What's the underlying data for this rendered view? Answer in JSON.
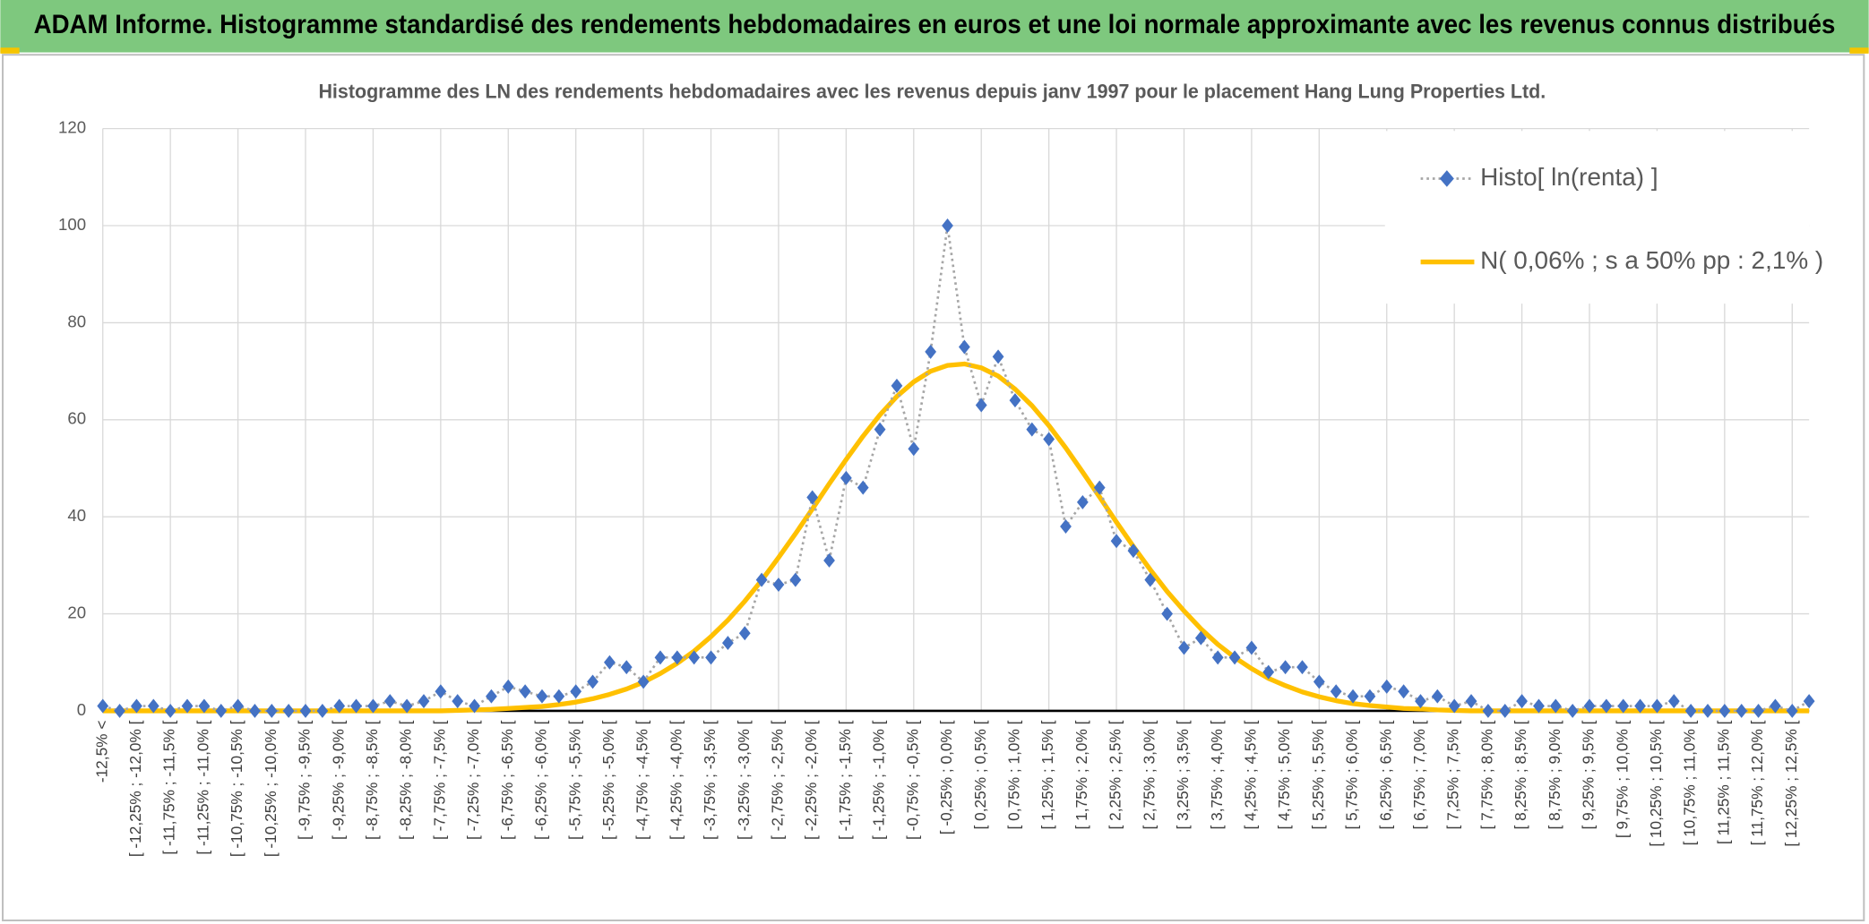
{
  "header": {
    "title": "ADAM Informe. Histogramme standardisé des rendements hebdomadaires en euros et une loi normale approximante avec les revenus connus distribués"
  },
  "chart_data": {
    "type": "line",
    "title": "Histogramme des LN des rendements hebdomadaires avec les revenus depuis janv 1997 pour le placement Hang Lung Properties Ltd.",
    "categories": [
      "-12,5% <",
      null,
      "[ -12,25% ; -12,0% [",
      null,
      "[ -11,75% ; -11,5% [",
      null,
      "[ -11,25% ; -11,0% [",
      null,
      "[ -10,75% ; -10,5% [",
      null,
      "[ -10,25% ; -10,0% [",
      null,
      "[ -9,75% ; -9,5% [",
      null,
      "[ -9,25% ; -9,0% [",
      null,
      "[ -8,75% ; -8,5% [",
      null,
      "[ -8,25% ; -8,0% [",
      null,
      "[ -7,75% ; -7,5% [",
      null,
      "[ -7,25% ; -7,0% [",
      null,
      "[ -6,75% ; -6,5% [",
      null,
      "[ -6,25% ; -6,0% [",
      null,
      "[ -5,75% ; -5,5% [",
      null,
      "[ -5,25% ; -5,0% [",
      null,
      "[ -4,75% ; -4,5% [",
      null,
      "[ -4,25% ; -4,0% [",
      null,
      "[ -3,75% ; -3,5% [",
      null,
      "[ -3,25% ; -3,0% [",
      null,
      "[ -2,75% ; -2,5% [",
      null,
      "[ -2,25% ; -2,0% [",
      null,
      "[ -1,75% ; -1,5% [",
      null,
      "[ -1,25% ; -1,0% [",
      null,
      "[ -0,75% ; -0,5% [",
      null,
      "[ -0,25% ; 0,0% [",
      null,
      "[ 0,25% ; 0,5% [",
      null,
      "[ 0,75% ; 1,0% [",
      null,
      "[ 1,25% ; 1,5% [",
      null,
      "[ 1,75% ; 2,0% [",
      null,
      "[ 2,25% ; 2,5% [",
      null,
      "[ 2,75% ; 3,0% [",
      null,
      "[ 3,25% ; 3,5% [",
      null,
      "[ 3,75% ; 4,0% [",
      null,
      "[ 4,25% ; 4,5% [",
      null,
      "[ 4,75% ; 5,0% [",
      null,
      "[ 5,25% ; 5,5% [",
      null,
      "[ 5,75% ; 6,0% [",
      null,
      "[ 6,25% ; 6,5% [",
      null,
      "[ 6,75% ; 7,0% [",
      null,
      "[ 7,25% ; 7,5% [",
      null,
      "[ 7,75% ; 8,0% [",
      null,
      "[ 8,25% ; 8,5% [",
      null,
      "[ 8,75% ; 9,0% [",
      null,
      "[ 9,25% ; 9,5% [",
      null,
      "[ 9,75% ; 10,0% [",
      null,
      "[ 10,25% ; 10,5% [",
      null,
      "[ 10,75% ; 11,0% [",
      null,
      "[ 11,25% ; 11,5% [",
      null,
      "[ 11,75% ; 12,0% [",
      null,
      "[ 12,25% ; 12,5% [",
      null
    ],
    "series": [
      {
        "name": "Histo[ ln(renta) ]",
        "color": "#4472c4",
        "line_color": "#a6a6a6",
        "values": [
          1,
          0,
          1,
          1,
          0,
          1,
          1,
          0,
          1,
          0,
          0,
          0,
          0,
          0,
          1,
          1,
          1,
          2,
          1,
          2,
          4,
          2,
          1,
          3,
          5,
          4,
          3,
          3,
          4,
          6,
          10,
          9,
          6,
          11,
          11,
          11,
          11,
          14,
          16,
          27,
          26,
          27,
          44,
          31,
          48,
          46,
          58,
          67,
          54,
          74,
          100,
          75,
          63,
          73,
          64,
          58,
          56,
          38,
          43,
          46,
          35,
          33,
          27,
          20,
          13,
          15,
          11,
          11,
          13,
          8,
          9,
          9,
          6,
          4,
          3,
          3,
          5,
          4,
          2,
          3,
          1,
          2,
          0,
          0,
          2,
          1,
          1,
          0,
          1,
          1,
          1,
          1,
          1,
          2,
          0,
          0,
          0,
          0,
          0,
          1,
          0,
          2
        ]
      },
      {
        "name": "N( 0,06% ; s a 50% pp : 2,1% )",
        "color": "#ffc000",
        "values": [
          0,
          0,
          0,
          0,
          0,
          0,
          0,
          0,
          0,
          0,
          0,
          0,
          0,
          0,
          0,
          0,
          0,
          0,
          0,
          0,
          0,
          0.1,
          0.2,
          0.3,
          0.5,
          0.7,
          0.9,
          1.3,
          1.8,
          2.5,
          3.4,
          4.5,
          5.9,
          7.7,
          9.8,
          12.3,
          15.3,
          18.7,
          22.6,
          26.9,
          31.6,
          36.5,
          41.6,
          46.8,
          51.8,
          56.6,
          61.0,
          64.8,
          67.8,
          70.0,
          71.2,
          71.5,
          70.7,
          69.0,
          66.3,
          62.9,
          58.8,
          54.2,
          49.2,
          44.1,
          38.9,
          33.9,
          29.1,
          24.6,
          20.6,
          16.9,
          13.7,
          11.0,
          8.7,
          6.7,
          5.2,
          3.9,
          2.9,
          2.1,
          1.5,
          1.1,
          0.8,
          0.5,
          0.4,
          0.2,
          0.1,
          0,
          0,
          0,
          0,
          0,
          0,
          0,
          0,
          0,
          0,
          0,
          0,
          0,
          0,
          0,
          0,
          0,
          0,
          0,
          0,
          0
        ]
      }
    ],
    "ylim": [
      0,
      120
    ],
    "yticks": [
      0,
      20,
      40,
      60,
      80,
      100,
      120
    ],
    "grid": true,
    "legend": "upper right"
  }
}
